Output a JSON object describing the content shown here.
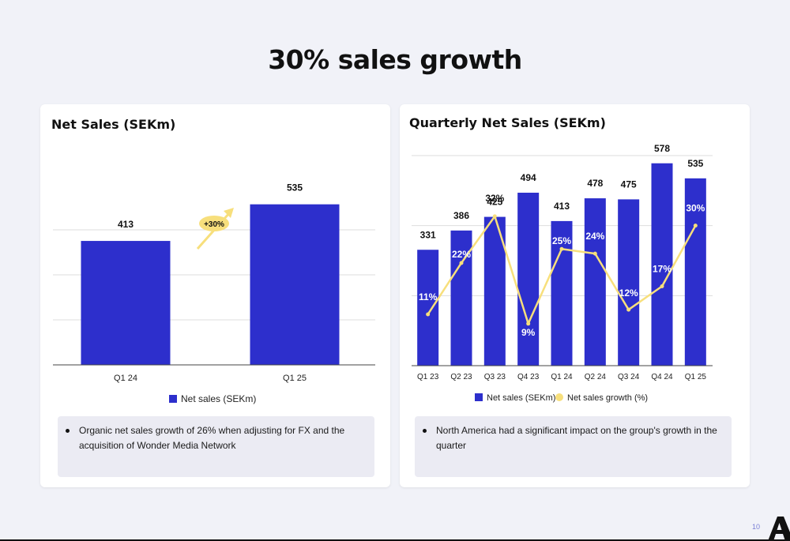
{
  "page": {
    "title": "30% sales growth",
    "page_number": "10",
    "logo_letter": "A"
  },
  "colors": {
    "bar": "#2d2fcc",
    "line": "#f7df7c",
    "badge": "#f7df7c",
    "gridline": "#dddddd",
    "axis": "#444444"
  },
  "left_card": {
    "title": "Net Sales (SEKm)",
    "note": "Organic net sales growth of 26% when adjusting for FX and the acquisition of Wonder Media Network",
    "growth_badge": "+30%"
  },
  "right_card": {
    "title": "Quarterly Net Sales (SEKm)",
    "note": "North America had a significant impact on the group's growth in the quarter"
  },
  "chart_data": [
    {
      "type": "bar",
      "title": "Net Sales (SEKm)",
      "categories": [
        "Q1 24",
        "Q1 25"
      ],
      "series": [
        {
          "name": "Net sales (SEKm)",
          "values": [
            413,
            535
          ],
          "labels": [
            "413",
            "535"
          ]
        }
      ],
      "ylim": [
        0,
        600
      ],
      "grid": true,
      "legend": "bottom",
      "annotation": "+30%"
    },
    {
      "type": "bar",
      "title": "Quarterly Net Sales (SEKm)",
      "categories": [
        "Q1 23",
        "Q2 23",
        "Q3 23",
        "Q4 23",
        "Q1 24",
        "Q2 24",
        "Q3 24",
        "Q4 24",
        "Q1 25"
      ],
      "series": [
        {
          "name": "Net sales (SEKm)",
          "kind": "bar",
          "values": [
            331,
            386,
            425,
            494,
            413,
            478,
            475,
            578,
            535
          ],
          "labels": [
            "331",
            "386",
            "425",
            "494",
            "413",
            "478",
            "475",
            "578",
            "535"
          ]
        },
        {
          "name": "Net sales growth (%)",
          "kind": "line",
          "values": [
            11,
            22,
            32,
            9,
            25,
            24,
            12,
            17,
            30
          ],
          "labels": [
            "11%",
            "22%",
            "32%",
            "9%",
            "25%",
            "24%",
            "12%",
            "17%",
            "30%"
          ]
        }
      ],
      "ylim": [
        0,
        600
      ],
      "y2lim": [
        0,
        45
      ],
      "grid": true,
      "legend": "bottom"
    }
  ]
}
